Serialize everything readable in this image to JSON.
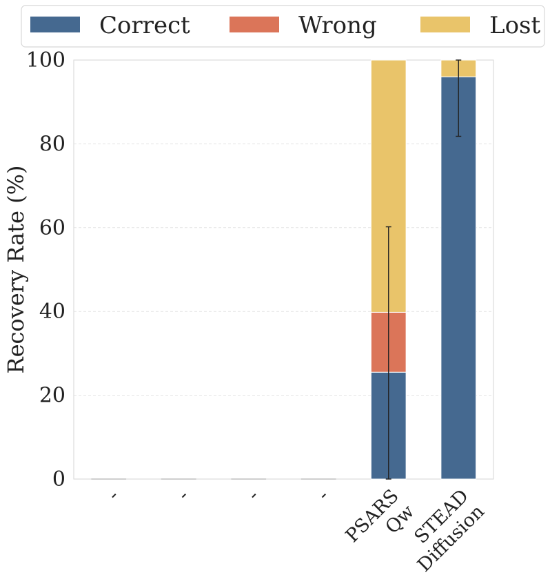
{
  "chart_data": {
    "type": "bar",
    "stacked": true,
    "categories": [
      "-",
      "-",
      "-",
      "-",
      "PSARS\nQw",
      "STEAD\nDiffusion"
    ],
    "series": [
      {
        "name": "Correct",
        "color": "#456990",
        "values": [
          0,
          0,
          0,
          0,
          25.5,
          96
        ]
      },
      {
        "name": "Wrong",
        "color": "#DB7559",
        "values": [
          0,
          0,
          0,
          0,
          14.3,
          0
        ]
      },
      {
        "name": "Lost",
        "color": "#E9C46A",
        "values": [
          0,
          0,
          0,
          0,
          60.2,
          4
        ]
      }
    ],
    "error_bars": [
      {
        "category_index": 4,
        "center": 25.5,
        "low": 0,
        "high": 60.2
      },
      {
        "category_index": 5,
        "center": 96,
        "low": 81.8,
        "high": 100
      }
    ],
    "title": "",
    "xlabel": "",
    "ylabel": "Recovery Rate (%)",
    "ylim": [
      0,
      100
    ],
    "yticks": [
      0,
      20,
      40,
      60,
      80,
      100
    ],
    "grid": "horizontal dashed",
    "legend_position": "top",
    "legend_columns": 3
  }
}
